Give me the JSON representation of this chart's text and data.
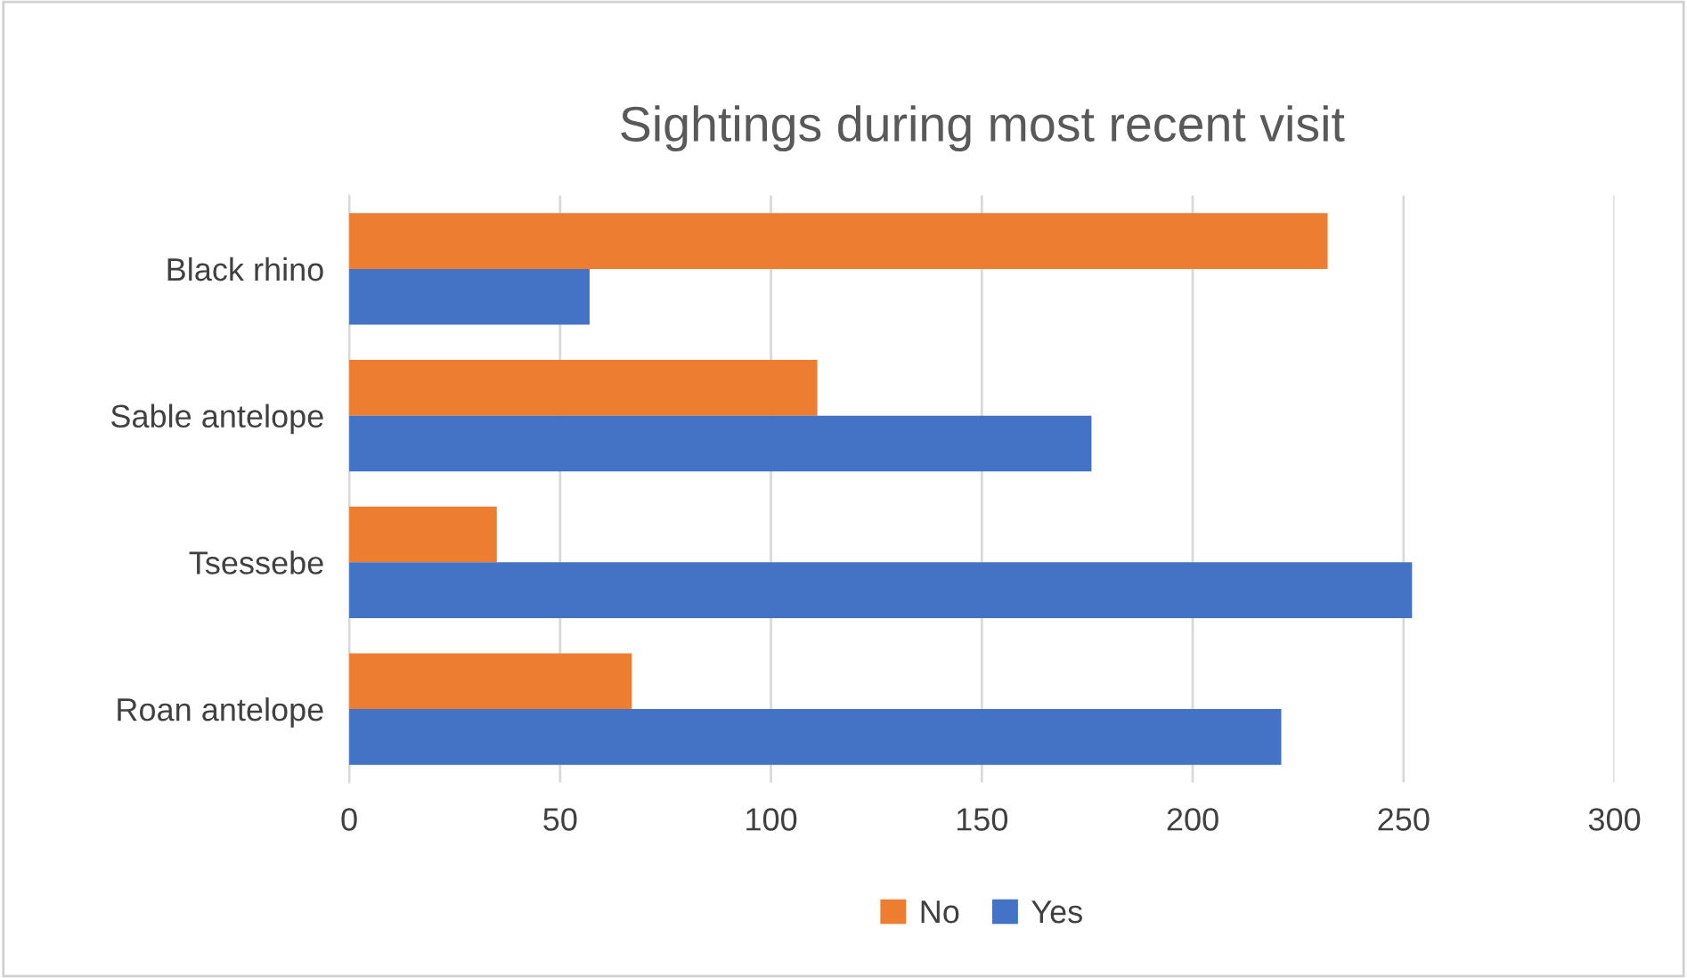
{
  "chart_data": {
    "type": "bar",
    "orientation": "horizontal",
    "title": "Sightings during most recent visit",
    "categories": [
      "Black rhino",
      "Sable antelope",
      "Tsessebe",
      "Roan antelope"
    ],
    "series": [
      {
        "name": "No",
        "color": "#ed7d31",
        "values": [
          232,
          111,
          35,
          67
        ]
      },
      {
        "name": "Yes",
        "color": "#4472c4",
        "values": [
          57,
          176,
          252,
          221
        ]
      }
    ],
    "xlim": [
      0,
      300
    ],
    "xticks": [
      0,
      50,
      100,
      150,
      200,
      250,
      300
    ],
    "grid": "x",
    "legend": "bottom"
  }
}
